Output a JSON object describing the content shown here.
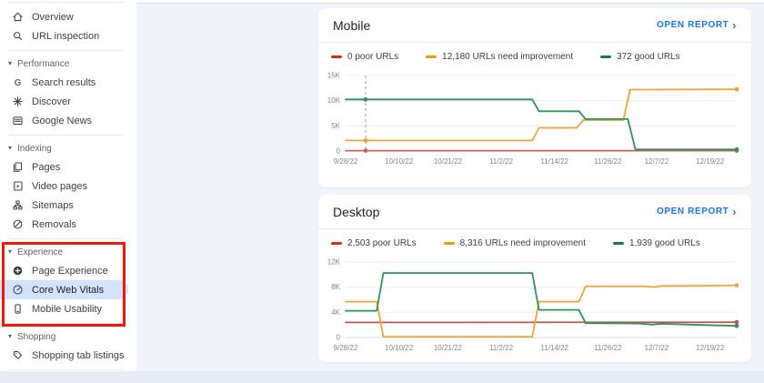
{
  "ui": {
    "chevron": "›",
    "section_triangle": "▾"
  },
  "colors": {
    "accent_blue": "#1a73e8",
    "selected_item_bg": "#d3e3fd",
    "annotation_red": "#f21807",
    "content_bg": "#f1f4fb"
  },
  "sidebar": {
    "items": [
      {
        "type": "item",
        "icon": "home-icon",
        "label": "Overview"
      },
      {
        "type": "item",
        "icon": "search-icon",
        "label": "URL inspection"
      },
      {
        "type": "divider"
      },
      {
        "type": "section",
        "label": "Performance"
      },
      {
        "type": "item",
        "icon": "google-g-icon",
        "label": "Search results"
      },
      {
        "type": "item",
        "icon": "discover-sparkle-icon",
        "label": "Discover"
      },
      {
        "type": "item",
        "icon": "news-icon",
        "label": "Google News"
      },
      {
        "type": "divider"
      },
      {
        "type": "section",
        "label": "Indexing"
      },
      {
        "type": "item",
        "icon": "pages-icon",
        "label": "Pages"
      },
      {
        "type": "item",
        "icon": "video-pages-icon",
        "label": "Video pages"
      },
      {
        "type": "item",
        "icon": "sitemap-icon",
        "label": "Sitemaps"
      },
      {
        "type": "item",
        "icon": "removals-icon",
        "label": "Removals"
      },
      {
        "type": "divider"
      },
      {
        "type": "section",
        "label": "Experience"
      },
      {
        "type": "item",
        "icon": "page-experience-icon",
        "label": "Page Experience"
      },
      {
        "type": "item",
        "icon": "gauge-icon",
        "label": "Core Web Vitals",
        "selected": true
      },
      {
        "type": "item",
        "icon": "phone-icon",
        "label": "Mobile Usability"
      },
      {
        "type": "divider"
      },
      {
        "type": "section",
        "label": "Shopping"
      },
      {
        "type": "item",
        "icon": "tag-icon",
        "label": "Shopping tab listings"
      },
      {
        "type": "divider"
      }
    ]
  },
  "chart_data": [
    {
      "type": "line",
      "title": "Mobile",
      "open_report_label": "OPEN REPORT",
      "ylim": [
        0,
        15000
      ],
      "yticks": [
        {
          "v": 0,
          "label": "0"
        },
        {
          "v": 5000,
          "label": "5K"
        },
        {
          "v": 10000,
          "label": "10K"
        },
        {
          "v": 15000,
          "label": "15K"
        }
      ],
      "x_axis_dates": [
        "9/28/22",
        "10/10/22",
        "10/21/22",
        "11/2/22",
        "11/14/22",
        "11/26/22",
        "12/7/22",
        "12/19/22"
      ],
      "xtick_days": [
        0,
        12,
        23,
        35,
        47,
        59,
        70,
        82
      ],
      "xmax": 88,
      "grid": true,
      "legend_position": "top",
      "marker": {
        "day": 4.5,
        "dot_values": [
          80,
          2100,
          10250
        ]
      },
      "series": [
        {
          "name": "poor URLs",
          "legend_label": "0 poor URLs",
          "color": "#cf2e20",
          "line_color": "#cd6257",
          "points": [
            [
              0,
              80
            ],
            [
              88,
              80
            ]
          ]
        },
        {
          "name": "URLs need improvement",
          "legend_label": "12,180 URLs need improvement",
          "color": "#f29900",
          "line_color": "#f2a33c",
          "points": [
            [
              0,
              2100
            ],
            [
              42,
              2100
            ],
            [
              43.5,
              4600
            ],
            [
              52,
              4600
            ],
            [
              53.5,
              6150
            ],
            [
              62.5,
              6150
            ],
            [
              64,
              12200
            ],
            [
              88,
              12250
            ]
          ]
        },
        {
          "name": "good URLs",
          "legend_label": "372 good URLs",
          "color": "#188038",
          "line_color": "#2f9256",
          "points": [
            [
              0,
              10250
            ],
            [
              42,
              10250
            ],
            [
              43.5,
              7900
            ],
            [
              52.5,
              7900
            ],
            [
              54,
              6350
            ],
            [
              63.5,
              6350
            ],
            [
              65.2,
              300
            ],
            [
              88,
              300
            ]
          ]
        }
      ]
    },
    {
      "type": "line",
      "title": "Desktop",
      "open_report_label": "OPEN REPORT",
      "ylim": [
        0,
        12000
      ],
      "yticks": [
        {
          "v": 0,
          "label": "0"
        },
        {
          "v": 4000,
          "label": "4K"
        },
        {
          "v": 8000,
          "label": "8K"
        },
        {
          "v": 12000,
          "label": "12K"
        }
      ],
      "x_axis_dates": [
        "9/28/22",
        "10/10/22",
        "10/21/22",
        "11/2/22",
        "11/14/22",
        "11/26/22",
        "12/7/22",
        "12/19/22"
      ],
      "xtick_days": [
        0,
        12,
        23,
        35,
        47,
        59,
        70,
        82
      ],
      "xmax": 88,
      "grid": true,
      "legend_position": "top",
      "marker": null,
      "series": [
        {
          "name": "poor URLs",
          "legend_label": "2,503 poor URLs",
          "color": "#cf2e20",
          "line_color": "#c4564b",
          "points": [
            [
              0,
              2400
            ],
            [
              88,
              2430
            ]
          ]
        },
        {
          "name": "URLs need improvement",
          "legend_label": "8,316 URLs need improvement",
          "color": "#f29900",
          "line_color": "#f2a33c",
          "points": [
            [
              0,
              5700
            ],
            [
              7,
              5700
            ],
            [
              8.5,
              120
            ],
            [
              42,
              120
            ],
            [
              43.5,
              5700
            ],
            [
              52.5,
              5700
            ],
            [
              54,
              8150
            ],
            [
              67,
              8150
            ],
            [
              69.5,
              8020
            ],
            [
              71,
              8200
            ],
            [
              80,
              8230
            ],
            [
              88,
              8300
            ]
          ]
        },
        {
          "name": "good URLs",
          "legend_label": "1,939 good URLs",
          "color": "#188038",
          "line_color": "#2f9256",
          "points": [
            [
              0,
              4250
            ],
            [
              7,
              4250
            ],
            [
              8.5,
              10250
            ],
            [
              42,
              10250
            ],
            [
              43.5,
              4400
            ],
            [
              52.5,
              4400
            ],
            [
              54,
              2280
            ],
            [
              66,
              2220
            ],
            [
              69,
              2050
            ],
            [
              71,
              2200
            ],
            [
              80,
              2000
            ],
            [
              88,
              1850
            ]
          ]
        }
      ]
    }
  ]
}
